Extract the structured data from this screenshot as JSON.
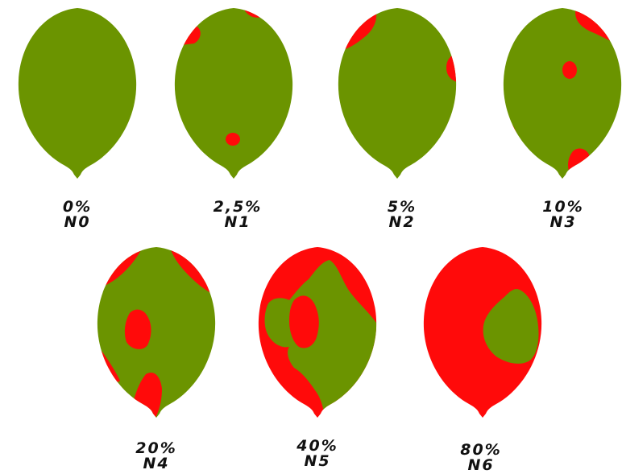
{
  "colors": {
    "healthy": "#6b9400",
    "disease": "#ff0a0a",
    "text": "#111111"
  },
  "scale": [
    {
      "percent": "0%",
      "level": "N0"
    },
    {
      "percent": "2,5%",
      "level": "N1"
    },
    {
      "percent": "5%",
      "level": "N2"
    },
    {
      "percent": "10%",
      "level": "N3"
    },
    {
      "percent": "20%",
      "level": "N4"
    },
    {
      "percent": "40%",
      "level": "N5"
    },
    {
      "percent": "80%",
      "level": "N6"
    }
  ]
}
